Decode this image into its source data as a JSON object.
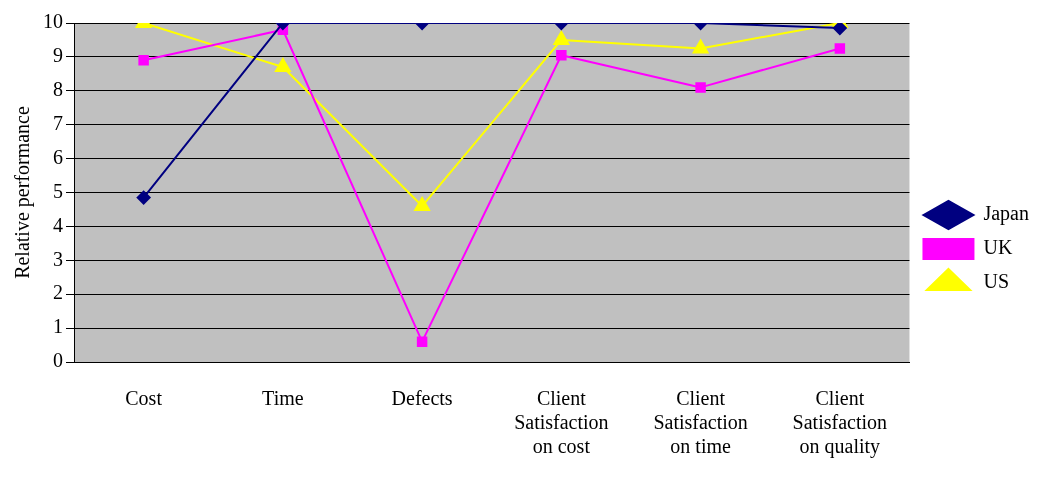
{
  "chart_data": {
    "type": "line",
    "ylabel": "Relative performance",
    "categories": [
      "Cost",
      "Time",
      "Defects",
      "Client Satisfaction on cost",
      "Client Satisfaction on time",
      "Client Satisfaction on quality"
    ],
    "series": [
      {
        "name": "Japan",
        "color": "#000080",
        "marker": "diamond",
        "values": [
          4.85,
          10,
          10,
          10,
          10,
          9.85
        ]
      },
      {
        "name": "UK",
        "color": "#ff00ff",
        "marker": "square",
        "values": [
          8.9,
          9.8,
          0.6,
          9.05,
          8.1,
          9.25
        ]
      },
      {
        "name": "US",
        "color": "#ffff00",
        "marker": "triangle",
        "values": [
          10,
          8.7,
          4.6,
          9.5,
          9.25,
          10
        ]
      }
    ],
    "ylim": [
      0,
      10
    ],
    "yticks": [
      0,
      1,
      2,
      3,
      4,
      5,
      6,
      7,
      8,
      9,
      10
    ],
    "grid": "y",
    "legend": "right",
    "line_style": "solid"
  }
}
